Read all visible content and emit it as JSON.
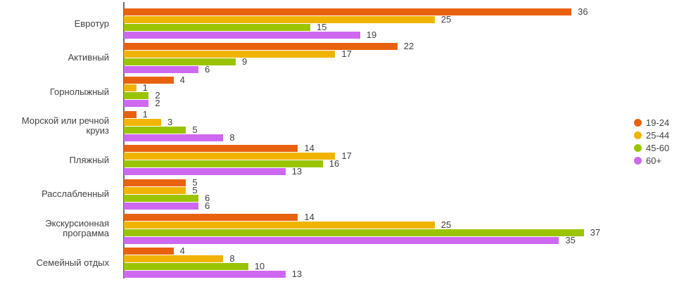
{
  "chart_data": {
    "type": "bar",
    "orientation": "horizontal",
    "title": "",
    "xlabel": "",
    "ylabel": "",
    "grid": false,
    "xlim": [
      0,
      43
    ],
    "value_labels": true,
    "legend_position": "right",
    "categories": [
      "Евротур",
      "Активный",
      "Горнолыжный",
      "Морской или речной круиз",
      "Пляжный",
      "Расслабленный",
      "Экскурсионная программа",
      "Семейный отдых"
    ],
    "series": [
      {
        "name": "19-24",
        "color": "#E8610F",
        "values": [
          36,
          22,
          4,
          1,
          14,
          5,
          14,
          4
        ]
      },
      {
        "name": "25-44",
        "color": "#F0B400",
        "values": [
          25,
          17,
          1,
          3,
          17,
          5,
          25,
          8
        ]
      },
      {
        "name": "45-60",
        "color": "#9AC402",
        "values": [
          15,
          9,
          2,
          5,
          16,
          6,
          37,
          10
        ]
      },
      {
        "name": "60+",
        "color": "#CE68F0",
        "values": [
          19,
          6,
          2,
          8,
          13,
          6,
          35,
          13
        ]
      }
    ]
  },
  "colors": {
    "axis_line": "#6f6f6f",
    "category_label_text": "#424242",
    "value_label_text": "#404040",
    "background": "#ffffff"
  }
}
